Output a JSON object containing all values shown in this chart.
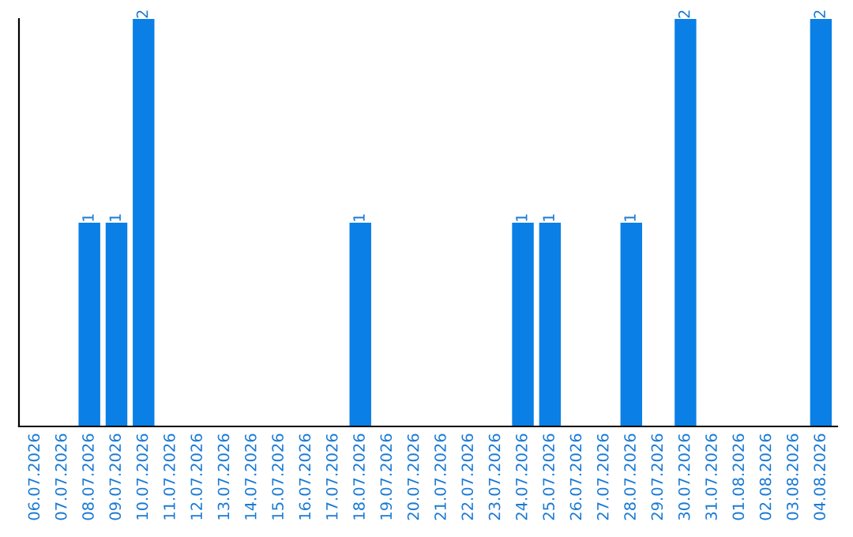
{
  "chart_data": {
    "type": "bar",
    "categories": [
      "06.07.2026",
      "07.07.2026",
      "08.07.2026",
      "09.07.2026",
      "10.07.2026",
      "11.07.2026",
      "12.07.2026",
      "13.07.2026",
      "14.07.2026",
      "15.07.2026",
      "16.07.2026",
      "17.07.2026",
      "18.07.2026",
      "19.07.2026",
      "20.07.2026",
      "21.07.2026",
      "22.07.2026",
      "23.07.2026",
      "24.07.2026",
      "25.07.2026",
      "26.07.2026",
      "27.07.2026",
      "28.07.2026",
      "29.07.2026",
      "30.07.2026",
      "31.07.2026",
      "01.08.2026",
      "02.08.2026",
      "03.08.2026",
      "04.08.2026"
    ],
    "values": [
      0,
      0,
      1,
      1,
      2,
      0,
      0,
      0,
      0,
      0,
      0,
      0,
      1,
      0,
      0,
      0,
      0,
      0,
      1,
      1,
      0,
      0,
      1,
      0,
      2,
      0,
      0,
      0,
      0,
      2
    ],
    "value_labels": [
      null,
      null,
      "1",
      "1",
      "2",
      null,
      null,
      null,
      null,
      null,
      null,
      null,
      "1",
      null,
      null,
      null,
      null,
      null,
      "1",
      "1",
      null,
      null,
      "1",
      null,
      "2",
      null,
      null,
      null,
      null,
      "2"
    ],
    "color": "#0a7fe6",
    "ylim": [
      0,
      2
    ],
    "tick_labels": "x",
    "grid": false,
    "legend": false
  }
}
